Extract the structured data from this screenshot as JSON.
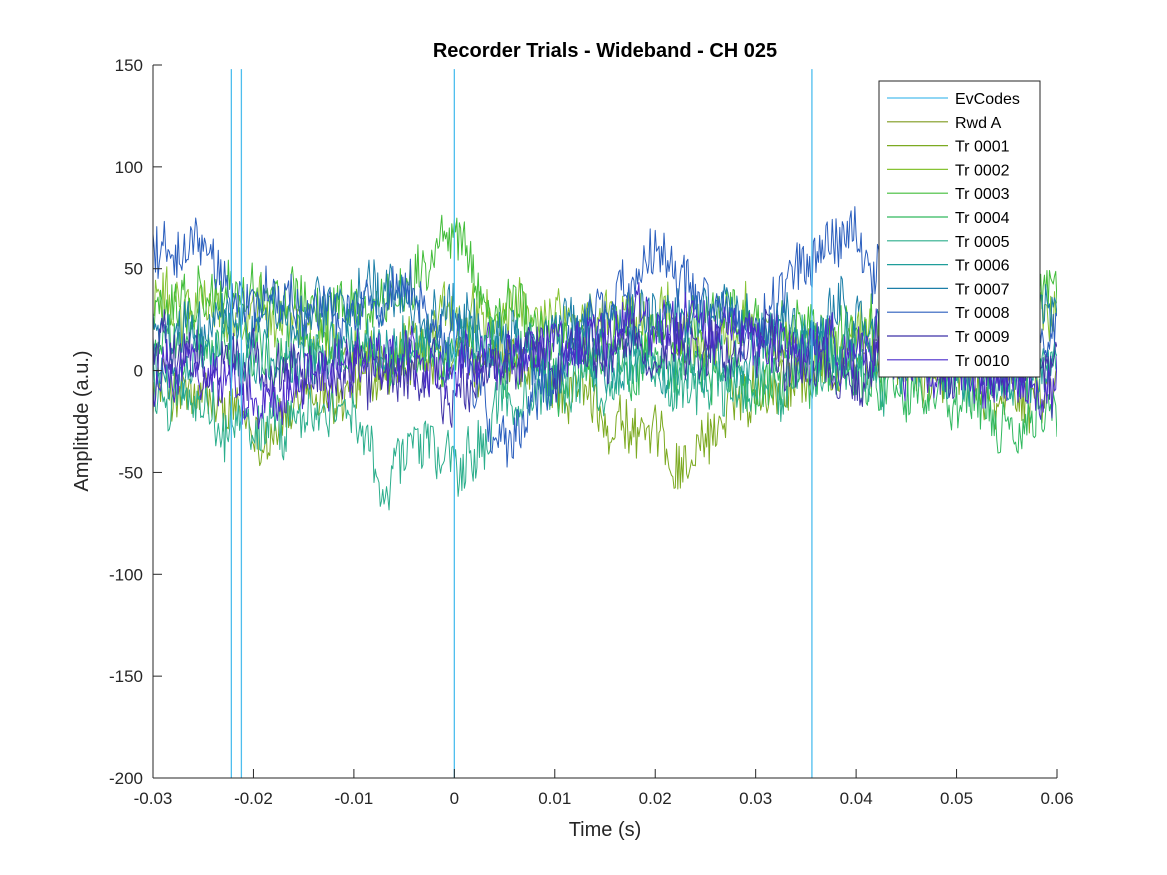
{
  "chart_data": {
    "type": "line",
    "title": "Recorder Trials - Wideband - CH 025",
    "xlabel": "Time (s)",
    "ylabel": "Amplitude (a.u.)",
    "xlim": [
      -0.03,
      0.06
    ],
    "ylim": [
      -200,
      150
    ],
    "xticks": [
      -0.03,
      -0.02,
      -0.01,
      0,
      0.01,
      0.02,
      0.03,
      0.04,
      0.05,
      0.06
    ],
    "xtick_labels": [
      "-0.03",
      "-0.02",
      "-0.01",
      "0",
      "0.01",
      "0.02",
      "0.03",
      "0.04",
      "0.05",
      "0.06"
    ],
    "yticks": [
      -200,
      -150,
      -100,
      -50,
      0,
      50,
      100,
      150
    ],
    "ytick_labels": [
      "-200",
      "-150",
      "-100",
      "-50",
      "0",
      "50",
      "100",
      "150"
    ],
    "grid": false,
    "legend_position": "top-right",
    "event_codes": {
      "name": "EvCodes",
      "color": "#4DBEEE",
      "x": [
        -0.0222,
        -0.0212,
        0,
        0.0356
      ],
      "y_range": [
        -200,
        148
      ]
    },
    "reward": {
      "name": "Rwd A",
      "color": "#7F9A1F"
    },
    "trial_sampling": {
      "count": 720,
      "x_start": -0.03,
      "x_end": 0.06
    },
    "series": [
      {
        "name": "Tr 0001",
        "color": "#7CAA21",
        "anchors": [
          [
            -0.03,
            -5
          ],
          [
            -0.02,
            -30
          ],
          [
            -0.01,
            -8
          ],
          [
            0,
            5
          ],
          [
            0.01,
            -5
          ],
          [
            0.02,
            -35
          ],
          [
            0.023,
            -45
          ],
          [
            0.03,
            -5
          ],
          [
            0.04,
            5
          ],
          [
            0.05,
            -5
          ],
          [
            0.06,
            -10
          ]
        ]
      },
      {
        "name": "Tr 0002",
        "color": "#87C334",
        "anchors": [
          [
            -0.03,
            35
          ],
          [
            -0.02,
            25
          ],
          [
            -0.01,
            15
          ],
          [
            0,
            20
          ],
          [
            0.01,
            30
          ],
          [
            0.02,
            25
          ],
          [
            0.03,
            15
          ],
          [
            0.04,
            20
          ],
          [
            0.05,
            25
          ],
          [
            0.06,
            20
          ]
        ]
      },
      {
        "name": "Tr 0003",
        "color": "#42BD3A",
        "anchors": [
          [
            -0.03,
            30
          ],
          [
            -0.02,
            40
          ],
          [
            -0.01,
            25
          ],
          [
            0,
            65
          ],
          [
            0.003,
            35
          ],
          [
            0.01,
            15
          ],
          [
            0.02,
            20
          ],
          [
            0.03,
            25
          ],
          [
            0.04,
            15
          ],
          [
            0.05,
            20
          ],
          [
            0.06,
            45
          ]
        ]
      },
      {
        "name": "Tr 0004",
        "color": "#30B95E",
        "anchors": [
          [
            -0.03,
            15
          ],
          [
            -0.02,
            10
          ],
          [
            -0.01,
            5
          ],
          [
            0,
            10
          ],
          [
            0.01,
            5
          ],
          [
            0.02,
            5
          ],
          [
            0.03,
            -5
          ],
          [
            0.04,
            0
          ],
          [
            0.05,
            -15
          ],
          [
            0.055,
            -35
          ],
          [
            0.06,
            -20
          ]
        ]
      },
      {
        "name": "Tr 0005",
        "color": "#2BAE8C",
        "anchors": [
          [
            -0.03,
            -10
          ],
          [
            -0.02,
            -30
          ],
          [
            -0.01,
            -15
          ],
          [
            -0.007,
            -60
          ],
          [
            -0.004,
            -30
          ],
          [
            0,
            -55
          ],
          [
            0.005,
            -15
          ],
          [
            0.01,
            -5
          ],
          [
            0.02,
            0
          ],
          [
            0.03,
            -5
          ],
          [
            0.04,
            0
          ],
          [
            0.05,
            5
          ],
          [
            0.06,
            0
          ]
        ]
      },
      {
        "name": "Tr 0006",
        "color": "#1F9E9A",
        "anchors": [
          [
            -0.03,
            5
          ],
          [
            -0.02,
            0
          ],
          [
            -0.01,
            10
          ],
          [
            0,
            15
          ],
          [
            0.01,
            5
          ],
          [
            0.02,
            0
          ],
          [
            0.03,
            10
          ],
          [
            0.04,
            5
          ],
          [
            0.05,
            0
          ],
          [
            0.06,
            5
          ]
        ]
      },
      {
        "name": "Tr 0007",
        "color": "#1C7FA8",
        "anchors": [
          [
            -0.03,
            25
          ],
          [
            -0.02,
            20
          ],
          [
            -0.01,
            35
          ],
          [
            0,
            25
          ],
          [
            0.01,
            20
          ],
          [
            0.02,
            25
          ],
          [
            0.03,
            20
          ],
          [
            0.04,
            25
          ],
          [
            0.05,
            20
          ],
          [
            0.06,
            25
          ]
        ]
      },
      {
        "name": "Tr 0008",
        "color": "#2B5FBE",
        "anchors": [
          [
            -0.03,
            60
          ],
          [
            -0.02,
            35
          ],
          [
            -0.01,
            30
          ],
          [
            -0.005,
            40
          ],
          [
            0,
            10
          ],
          [
            0.005,
            -45
          ],
          [
            0.01,
            0
          ],
          [
            0.015,
            35
          ],
          [
            0.02,
            55
          ],
          [
            0.025,
            30
          ],
          [
            0.03,
            20
          ],
          [
            0.035,
            50
          ],
          [
            0.038,
            70
          ],
          [
            0.045,
            35
          ],
          [
            0.05,
            20
          ],
          [
            0.06,
            25
          ]
        ]
      },
      {
        "name": "Tr 0009",
        "color": "#3F32A8",
        "anchors": [
          [
            -0.03,
            10
          ],
          [
            -0.02,
            5
          ],
          [
            -0.01,
            0
          ],
          [
            0,
            -5
          ],
          [
            0.01,
            5
          ],
          [
            0.02,
            15
          ],
          [
            0.03,
            10
          ],
          [
            0.04,
            5
          ],
          [
            0.05,
            10
          ],
          [
            0.06,
            5
          ]
        ]
      },
      {
        "name": "Tr 0010",
        "color": "#4B2BCB",
        "anchors": [
          [
            -0.03,
            0
          ],
          [
            -0.02,
            -10
          ],
          [
            -0.01,
            5
          ],
          [
            0,
            0
          ],
          [
            0.01,
            10
          ],
          [
            0.02,
            20
          ],
          [
            0.03,
            15
          ],
          [
            0.04,
            10
          ],
          [
            0.05,
            0
          ],
          [
            0.06,
            -10
          ]
        ]
      }
    ]
  }
}
